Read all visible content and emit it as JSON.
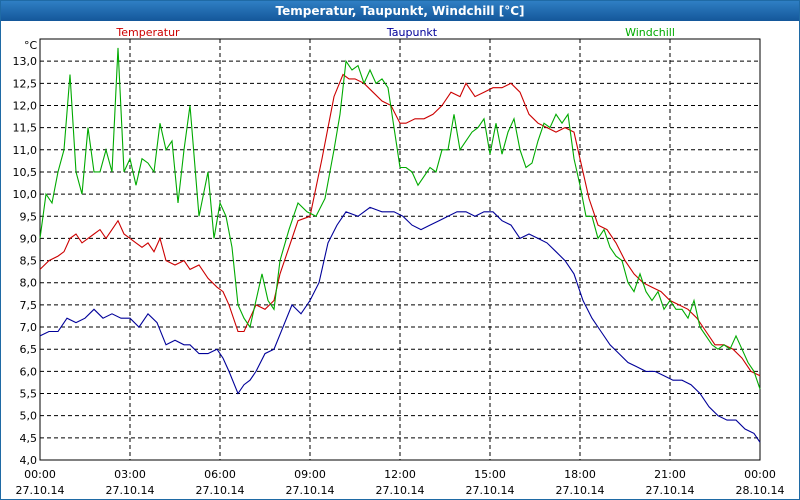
{
  "window": {
    "title": "Temperatur, Taupunkt, Windchill [°C]"
  },
  "chart_data": {
    "type": "line",
    "title": "Temperatur, Taupunkt, Windchill [°C]",
    "ylabel": "°C",
    "ylim": [
      4.0,
      13.5
    ],
    "xlim": [
      0,
      24
    ],
    "grid": true,
    "yticks": [
      "4,0",
      "4,5",
      "5,0",
      "5,5",
      "6,0",
      "6,5",
      "7,0",
      "7,5",
      "8,0",
      "8,5",
      "9,0",
      "9,5",
      "10,0",
      "10,5",
      "11,0",
      "11,5",
      "12,0",
      "12,5",
      "13,0"
    ],
    "xticks": [
      {
        "time": "00:00",
        "date": "27.10.14"
      },
      {
        "time": "03:00",
        "date": "27.10.14"
      },
      {
        "time": "06:00",
        "date": "27.10.14"
      },
      {
        "time": "09:00",
        "date": "27.10.14"
      },
      {
        "time": "12:00",
        "date": "27.10.14"
      },
      {
        "time": "15:00",
        "date": "27.10.14"
      },
      {
        "time": "18:00",
        "date": "27.10.14"
      },
      {
        "time": "21:00",
        "date": "27.10.14"
      },
      {
        "time": "00:00",
        "date": "28.10.14"
      }
    ],
    "legend_position": "top",
    "series": [
      {
        "name": "Temperatur",
        "color": "#cc0000",
        "x": [
          0,
          0.3,
          0.6,
          0.8,
          1.0,
          1.2,
          1.4,
          1.6,
          1.8,
          2.0,
          2.2,
          2.4,
          2.6,
          2.8,
          3.0,
          3.2,
          3.4,
          3.6,
          3.8,
          4.0,
          4.2,
          4.5,
          4.8,
          5.0,
          5.3,
          5.6,
          5.9,
          6.1,
          6.3,
          6.6,
          6.8,
          7.0,
          7.2,
          7.5,
          7.8,
          8.0,
          8.3,
          8.6,
          9.0,
          9.4,
          9.8,
          10.1,
          10.3,
          10.5,
          10.8,
          11.1,
          11.4,
          11.7,
          12.0,
          12.2,
          12.5,
          12.8,
          13.1,
          13.4,
          13.7,
          14.0,
          14.2,
          14.5,
          14.8,
          15.1,
          15.4,
          15.7,
          16.0,
          16.3,
          16.6,
          16.9,
          17.2,
          17.5,
          17.8,
          18.0,
          18.3,
          18.6,
          18.9,
          19.2,
          19.5,
          19.8,
          20.1,
          20.4,
          20.7,
          21.0,
          21.3,
          21.6,
          21.9,
          22.2,
          22.5,
          22.8,
          23.1,
          23.4,
          23.7,
          24.0
        ],
        "y": [
          8.3,
          8.5,
          8.6,
          8.7,
          9.0,
          9.1,
          8.9,
          9.0,
          9.1,
          9.2,
          9.0,
          9.2,
          9.4,
          9.1,
          9.0,
          8.9,
          8.8,
          8.9,
          8.7,
          9.0,
          8.5,
          8.4,
          8.5,
          8.3,
          8.4,
          8.1,
          7.9,
          7.8,
          7.5,
          6.9,
          6.9,
          7.2,
          7.5,
          7.4,
          7.6,
          8.2,
          8.8,
          9.4,
          9.5,
          10.8,
          12.2,
          12.7,
          12.6,
          12.6,
          12.5,
          12.3,
          12.1,
          12.0,
          11.6,
          11.6,
          11.7,
          11.7,
          11.8,
          12.0,
          12.3,
          12.2,
          12.5,
          12.2,
          12.3,
          12.4,
          12.4,
          12.5,
          12.3,
          11.8,
          11.6,
          11.5,
          11.4,
          11.5,
          11.4,
          10.8,
          9.9,
          9.3,
          9.2,
          8.9,
          8.5,
          8.2,
          8.0,
          7.9,
          7.8,
          7.6,
          7.5,
          7.4,
          7.2,
          6.9,
          6.6,
          6.6,
          6.5,
          6.3,
          6.0,
          5.9
        ]
      },
      {
        "name": "Taupunkt",
        "color": "#000099",
        "x": [
          0,
          0.3,
          0.6,
          0.9,
          1.2,
          1.5,
          1.8,
          2.1,
          2.4,
          2.7,
          3.0,
          3.3,
          3.6,
          3.9,
          4.2,
          4.5,
          4.8,
          5.0,
          5.3,
          5.6,
          5.9,
          6.1,
          6.3,
          6.6,
          6.8,
          7.0,
          7.2,
          7.5,
          7.8,
          8.1,
          8.4,
          8.7,
          9.0,
          9.3,
          9.6,
          9.9,
          10.2,
          10.6,
          11.0,
          11.4,
          11.8,
          12.1,
          12.4,
          12.7,
          13.0,
          13.3,
          13.6,
          13.9,
          14.2,
          14.5,
          14.8,
          15.1,
          15.4,
          15.7,
          16.0,
          16.3,
          16.6,
          16.9,
          17.2,
          17.5,
          17.8,
          18.1,
          18.4,
          18.7,
          19.0,
          19.3,
          19.6,
          19.9,
          20.2,
          20.5,
          20.8,
          21.1,
          21.4,
          21.7,
          22.0,
          22.3,
          22.6,
          22.9,
          23.2,
          23.5,
          23.8,
          24.0
        ],
        "y": [
          6.8,
          6.9,
          6.9,
          7.2,
          7.1,
          7.2,
          7.4,
          7.2,
          7.3,
          7.2,
          7.2,
          7.0,
          7.3,
          7.1,
          6.6,
          6.7,
          6.6,
          6.6,
          6.4,
          6.4,
          6.5,
          6.3,
          6.0,
          5.5,
          5.7,
          5.8,
          6.0,
          6.4,
          6.5,
          7.0,
          7.5,
          7.3,
          7.6,
          8.0,
          8.9,
          9.3,
          9.6,
          9.5,
          9.7,
          9.6,
          9.6,
          9.5,
          9.3,
          9.2,
          9.3,
          9.4,
          9.5,
          9.6,
          9.6,
          9.5,
          9.6,
          9.6,
          9.4,
          9.3,
          9.0,
          9.1,
          9.0,
          8.9,
          8.7,
          8.5,
          8.2,
          7.6,
          7.2,
          6.9,
          6.6,
          6.4,
          6.2,
          6.1,
          6.0,
          6.0,
          5.9,
          5.8,
          5.8,
          5.7,
          5.5,
          5.2,
          5.0,
          4.9,
          4.9,
          4.7,
          4.6,
          4.4
        ]
      },
      {
        "name": "Windchill",
        "color": "#00aa00",
        "x": [
          0,
          0.2,
          0.4,
          0.6,
          0.8,
          1.0,
          1.2,
          1.4,
          1.6,
          1.8,
          2.0,
          2.2,
          2.4,
          2.6,
          2.8,
          3.0,
          3.2,
          3.4,
          3.6,
          3.8,
          4.0,
          4.2,
          4.4,
          4.6,
          4.8,
          5.0,
          5.3,
          5.6,
          5.8,
          6.0,
          6.2,
          6.4,
          6.6,
          6.8,
          7.0,
          7.2,
          7.4,
          7.6,
          7.8,
          8.0,
          8.3,
          8.6,
          8.9,
          9.2,
          9.5,
          9.8,
          10.0,
          10.2,
          10.4,
          10.6,
          10.8,
          11.0,
          11.2,
          11.4,
          11.6,
          11.8,
          12.0,
          12.2,
          12.4,
          12.6,
          12.8,
          13.0,
          13.2,
          13.4,
          13.6,
          13.8,
          14.0,
          14.2,
          14.4,
          14.6,
          14.8,
          15.0,
          15.2,
          15.4,
          15.6,
          15.8,
          16.0,
          16.2,
          16.4,
          16.6,
          16.8,
          17.0,
          17.2,
          17.4,
          17.6,
          17.8,
          18.0,
          18.2,
          18.4,
          18.6,
          18.8,
          19.0,
          19.2,
          19.4,
          19.6,
          19.8,
          20.0,
          20.2,
          20.4,
          20.6,
          20.8,
          21.0,
          21.2,
          21.4,
          21.6,
          21.8,
          22.0,
          22.2,
          22.4,
          22.6,
          22.8,
          23.0,
          23.2,
          23.4,
          23.6,
          23.8,
          24.0
        ],
        "y": [
          9.0,
          10.0,
          9.8,
          10.5,
          11.0,
          12.7,
          10.5,
          10.0,
          11.5,
          10.5,
          10.5,
          11.0,
          10.5,
          13.3,
          10.5,
          10.8,
          10.2,
          10.8,
          10.7,
          10.5,
          11.6,
          11.0,
          11.2,
          9.8,
          11.0,
          12.0,
          9.5,
          10.5,
          9.0,
          9.8,
          9.5,
          8.8,
          7.5,
          7.2,
          7.0,
          7.6,
          8.2,
          7.6,
          7.4,
          8.5,
          9.2,
          9.8,
          9.6,
          9.5,
          9.9,
          11.0,
          11.8,
          13.0,
          12.8,
          12.9,
          12.5,
          12.8,
          12.5,
          12.6,
          12.4,
          11.5,
          10.6,
          10.6,
          10.5,
          10.2,
          10.4,
          10.6,
          10.5,
          11.0,
          11.0,
          11.8,
          11.0,
          11.2,
          11.4,
          11.5,
          11.7,
          10.9,
          11.6,
          10.9,
          11.4,
          11.7,
          11.0,
          10.6,
          10.7,
          11.2,
          11.6,
          11.5,
          11.8,
          11.6,
          11.8,
          10.8,
          10.2,
          9.5,
          9.5,
          9.0,
          9.2,
          8.8,
          8.6,
          8.5,
          8.0,
          7.8,
          8.2,
          7.8,
          7.6,
          7.8,
          7.4,
          7.6,
          7.4,
          7.4,
          7.2,
          7.6,
          7.0,
          6.8,
          6.6,
          6.5,
          6.6,
          6.5,
          6.8,
          6.5,
          6.2,
          6.0,
          5.6
        ]
      }
    ]
  }
}
